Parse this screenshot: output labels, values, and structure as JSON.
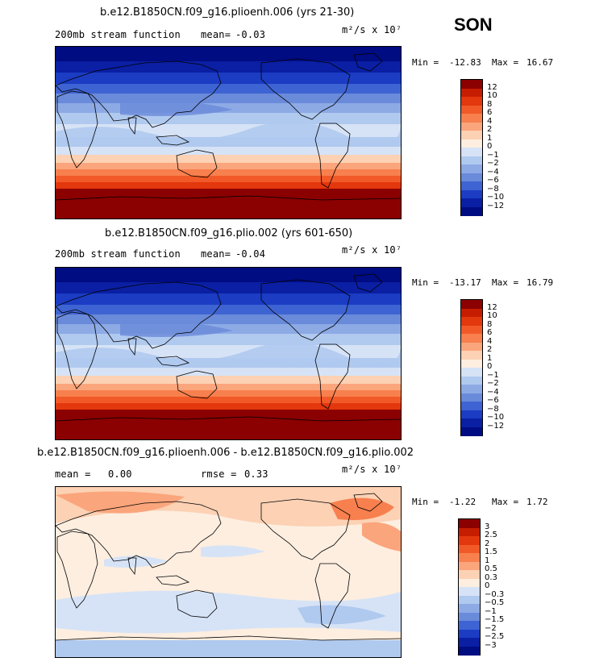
{
  "season": "SON",
  "chart_data": [
    {
      "type": "heatmap",
      "title": "b.e12.B1850CN.f09_g16.plioenh.006 (yrs 21-30)",
      "field_label": "200mb stream function",
      "stat_label": "mean=",
      "stat_value": "-0.03",
      "units": "m²/s x 10⁷",
      "min_label": "Min =",
      "min_value": "-12.83",
      "max_label": "Max =",
      "max_value": "16.67",
      "levels": [
        "12",
        "10",
        "8",
        "6",
        "4",
        "2",
        "1",
        "0",
        "-1",
        "-2",
        "-4",
        "-6",
        "-8",
        "-10",
        "-12"
      ],
      "colors": [
        "#8b0000",
        "#c61d00",
        "#e3370d",
        "#f15a28",
        "#f7804e",
        "#fba57c",
        "#fcd1b4",
        "#fdeee0",
        "#d6e3f6",
        "#b0c9ef",
        "#8daae5",
        "#6a8ada",
        "#3e63d2",
        "#1b3cc3",
        "#0a1fa3",
        "#000c82"
      ]
    },
    {
      "type": "heatmap",
      "title": "b.e12.B1850CN.f09_g16.plio.002 (yrs 601-650)",
      "field_label": "200mb stream function",
      "stat_label": "mean=",
      "stat_value": "-0.04",
      "units": "m²/s x 10⁷",
      "min_label": "Min =",
      "min_value": "-13.17",
      "max_label": "Max =",
      "max_value": "16.79",
      "levels": [
        "12",
        "10",
        "8",
        "6",
        "4",
        "2",
        "1",
        "0",
        "-1",
        "-2",
        "-4",
        "-6",
        "-8",
        "-10",
        "-12"
      ],
      "colors": [
        "#8b0000",
        "#c61d00",
        "#e3370d",
        "#f15a28",
        "#f7804e",
        "#fba57c",
        "#fcd1b4",
        "#fdeee0",
        "#d6e3f6",
        "#b0c9ef",
        "#8daae5",
        "#6a8ada",
        "#3e63d2",
        "#1b3cc3",
        "#0a1fa3",
        "#000c82"
      ]
    },
    {
      "type": "heatmap",
      "title": "b.e12.B1850CN.f09_g16.plioenh.006 - b.e12.B1850CN.f09_g16.plio.002",
      "field_label": "mean =",
      "stat_label": "",
      "stat_value": "0.00",
      "rmse_label": "rmse =",
      "rmse_value": "0.33",
      "units": "m²/s x 10⁷",
      "min_label": "Min =",
      "min_value": "-1.22",
      "max_label": "Max =",
      "max_value": "1.72",
      "levels": [
        "3",
        "2.5",
        "2",
        "1.5",
        "1",
        "0.5",
        "0.3",
        "0",
        "-0.3",
        "-0.5",
        "-1",
        "-1.5",
        "-2",
        "-2.5",
        "-3"
      ],
      "colors": [
        "#8b0000",
        "#c61d00",
        "#e3370d",
        "#f15a28",
        "#f7804e",
        "#fba57c",
        "#fcd1b4",
        "#fdeee0",
        "#d6e3f6",
        "#b0c9ef",
        "#8daae5",
        "#6a8ada",
        "#3e63d2",
        "#1b3cc3",
        "#0a1fa3",
        "#000c82"
      ]
    }
  ]
}
